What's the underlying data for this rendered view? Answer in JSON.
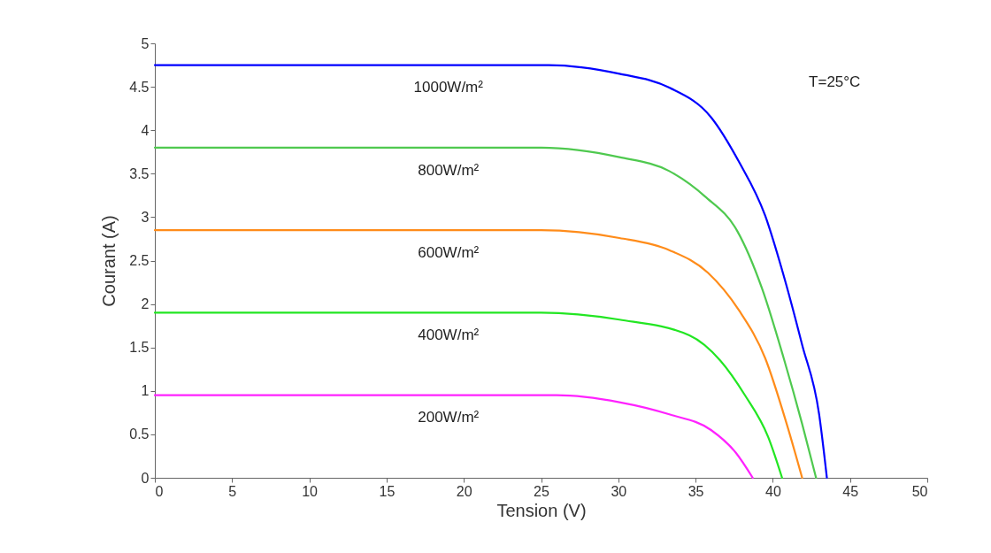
{
  "chart_data": {
    "type": "line",
    "xlabel": "Tension (V)",
    "ylabel": "Courant (A)",
    "xlim": [
      0,
      50
    ],
    "ylim": [
      0,
      5
    ],
    "xticks": [
      0,
      5,
      10,
      15,
      20,
      25,
      30,
      35,
      40,
      45,
      50
    ],
    "yticks": [
      0,
      0.5,
      1,
      1.5,
      2,
      2.5,
      3,
      3.5,
      4,
      4.5,
      5
    ],
    "grid": false,
    "marker": "none",
    "line_style": "solid",
    "annotations": [
      "T=25°C"
    ],
    "series": [
      {
        "name": "1000W/m²",
        "color": "#0000ff",
        "x": [
          0,
          25.5,
          30.07,
          33.3,
          36.0,
          37.8,
          39.5,
          40.7,
          41.9,
          43.0,
          43.5
        ],
        "values": [
          4.75,
          4.75,
          4.65,
          4.49,
          4.15,
          3.64,
          3.02,
          2.33,
          1.53,
          0.73,
          0
        ]
      },
      {
        "name": "800W/m²",
        "color": "#4fc94f",
        "x": [
          0,
          25,
          30.07,
          33.3,
          35.6,
          37.7,
          39.3,
          40.7,
          41.9,
          42.8
        ],
        "values": [
          3.8,
          3.8,
          3.69,
          3.53,
          3.24,
          2.84,
          2.18,
          1.38,
          0.62,
          0
        ]
      },
      {
        "name": "600W/m²",
        "color": "#ff8c1a",
        "x": [
          0,
          25,
          30.07,
          33.3,
          35.8,
          37.8,
          39.5,
          40.9,
          41.9
        ],
        "values": [
          2.85,
          2.85,
          2.76,
          2.62,
          2.36,
          1.93,
          1.38,
          0.62,
          0
        ]
      },
      {
        "name": "400W/m²",
        "color": "#22e622",
        "x": [
          0,
          25,
          30.07,
          34.6,
          36.6,
          38.2,
          39.7,
          40.6
        ],
        "values": [
          1.9,
          1.9,
          1.82,
          1.64,
          1.35,
          0.95,
          0.47,
          0
        ]
      },
      {
        "name": "200W/m²",
        "color": "#ff22ff",
        "x": [
          0,
          26,
          30.07,
          33.3,
          36.0,
          37.6,
          38.7
        ],
        "values": [
          0.95,
          0.95,
          0.87,
          0.73,
          0.55,
          0.29,
          0
        ]
      }
    ]
  }
}
